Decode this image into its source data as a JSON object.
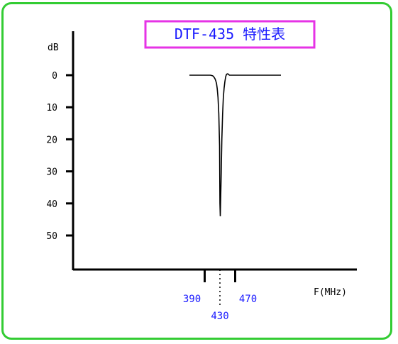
{
  "chart_data": {
    "type": "line",
    "title": "DTF-435  特性表",
    "ylabel": "dB",
    "xlabel": "F(MHz)",
    "y_ticks": [
      "0",
      "10",
      "20",
      "30",
      "40",
      "50"
    ],
    "x_ticks": [
      "390",
      "430",
      "470"
    ],
    "x_tick_values": [
      390,
      430,
      470
    ],
    "xlim": [
      350,
      590
    ],
    "ylim": [
      60,
      -1
    ],
    "y_inverted": true,
    "series": [
      {
        "x": [
          350,
          390,
          405,
          411,
          413,
          415,
          417,
          419,
          421,
          423,
          425,
          427,
          429,
          430,
          431,
          433,
          435,
          437,
          439,
          441,
          443,
          445,
          447,
          449,
          451,
          453,
          455,
          470,
          500,
          590
        ],
        "values": [
          0,
          0,
          0,
          0.2,
          0.4,
          0.7,
          1.1,
          1.7,
          2.6,
          4.2,
          7,
          12,
          22,
          40,
          44,
          33,
          20,
          12,
          7,
          4,
          2,
          0.5,
          -0.2,
          -0.4,
          -0.4,
          -0.2,
          0,
          0,
          0,
          0
        ]
      }
    ],
    "colors": {
      "frame": "#33cc33",
      "title_border": "#e633e6",
      "title_text": "#1a1aff",
      "x_tick_labels": "#1a1aff",
      "curve": "#000000"
    }
  }
}
